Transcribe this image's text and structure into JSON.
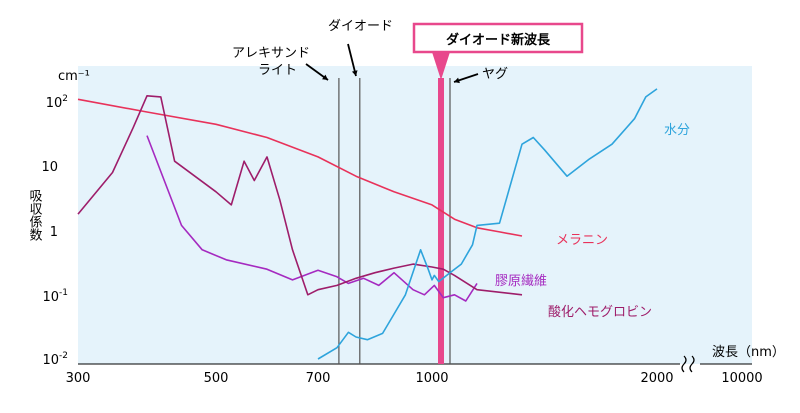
{
  "chart_data": {
    "type": "line",
    "xlabel": "波長（nm）",
    "ylabel": "吸収係数",
    "yunit": "cm⁻¹",
    "yscale": "log",
    "ylim": [
      0.01,
      200
    ],
    "grid": false,
    "x_ticks": [
      "300",
      "500",
      "700",
      "1000",
      "2000",
      "10000"
    ],
    "y_ticks": [
      {
        "base": "10",
        "exp": "2"
      },
      {
        "base": "10",
        "exp": ""
      },
      {
        "base": "1",
        "exp": ""
      },
      {
        "base": "10",
        "exp": "-1"
      },
      {
        "base": "10",
        "exp": "-2"
      }
    ],
    "series": [
      {
        "name": "メラニン",
        "color": "#e8325a",
        "points": [
          [
            300,
            110
          ],
          [
            400,
            70
          ],
          [
            500,
            45
          ],
          [
            600,
            28
          ],
          [
            700,
            14
          ],
          [
            800,
            7
          ],
          [
            900,
            4
          ],
          [
            1000,
            2.5
          ],
          [
            1100,
            1.5
          ],
          [
            1200,
            1.1
          ],
          [
            1300,
            0.95
          ],
          [
            1400,
            0.82
          ]
        ]
      },
      {
        "name": "膠原繊維",
        "color": "#a52ac0",
        "points": [
          [
            400,
            30
          ],
          [
            450,
            1.2
          ],
          [
            480,
            0.5
          ],
          [
            520,
            0.35
          ],
          [
            600,
            0.25
          ],
          [
            650,
            0.17
          ],
          [
            700,
            0.24
          ],
          [
            750,
            0.19
          ],
          [
            780,
            0.15
          ],
          [
            820,
            0.18
          ],
          [
            860,
            0.14
          ],
          [
            900,
            0.22
          ],
          [
            950,
            0.12
          ],
          [
            980,
            0.1
          ],
          [
            1010,
            0.14
          ],
          [
            1050,
            0.09
          ],
          [
            1100,
            0.1
          ],
          [
            1150,
            0.08
          ],
          [
            1200,
            0.15
          ]
        ]
      },
      {
        "name": "酸化ヘモグロビン",
        "color": "#9e1d6a",
        "points": [
          [
            300,
            1.8
          ],
          [
            350,
            8
          ],
          [
            380,
            40
          ],
          [
            400,
            125
          ],
          [
            420,
            120
          ],
          [
            440,
            12
          ],
          [
            500,
            4
          ],
          [
            530,
            2.5
          ],
          [
            555,
            12
          ],
          [
            575,
            6
          ],
          [
            600,
            14
          ],
          [
            625,
            3
          ],
          [
            650,
            0.5
          ],
          [
            680,
            0.1
          ],
          [
            700,
            0.12
          ],
          [
            750,
            0.14
          ],
          [
            800,
            0.18
          ],
          [
            850,
            0.22
          ],
          [
            900,
            0.26
          ],
          [
            950,
            0.3
          ],
          [
            1000,
            0.27
          ],
          [
            1050,
            0.25
          ],
          [
            1100,
            0.2
          ],
          [
            1200,
            0.12
          ],
          [
            1400,
            0.1
          ]
        ]
      },
      {
        "name": "水分",
        "color": "#2ea4dc",
        "points": [
          [
            700,
            0.01
          ],
          [
            750,
            0.015
          ],
          [
            780,
            0.026
          ],
          [
            800,
            0.022
          ],
          [
            830,
            0.02
          ],
          [
            870,
            0.025
          ],
          [
            900,
            0.05
          ],
          [
            930,
            0.1
          ],
          [
            970,
            0.5
          ],
          [
            990,
            0.25
          ],
          [
            1000,
            0.17
          ],
          [
            1010,
            0.2
          ],
          [
            1030,
            0.16
          ],
          [
            1080,
            0.22
          ],
          [
            1130,
            0.3
          ],
          [
            1180,
            0.6
          ],
          [
            1200,
            1.2
          ],
          [
            1300,
            1.3
          ],
          [
            1400,
            22
          ],
          [
            1450,
            28
          ],
          [
            1500,
            18
          ],
          [
            1600,
            7
          ],
          [
            1700,
            13
          ],
          [
            1800,
            22
          ],
          [
            1900,
            55
          ],
          [
            1950,
            120
          ],
          [
            2000,
            160
          ]
        ]
      }
    ],
    "lasers": [
      {
        "label": "アレキサンドライト",
        "wavelength": 755,
        "color": "#555555"
      },
      {
        "label": "ダイオード",
        "wavelength": 810,
        "color": "#555555"
      },
      {
        "label": "ダイオード新波長",
        "wavelength": 1060,
        "color": "#e8488c"
      },
      {
        "label": "ヤグ",
        "wavelength": 1064,
        "color": "#555555"
      }
    ]
  }
}
